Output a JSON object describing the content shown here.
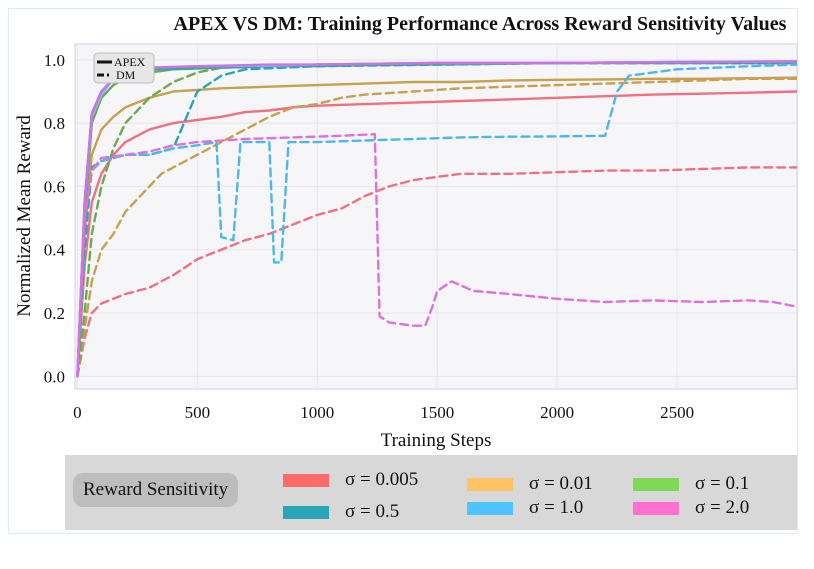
{
  "chart_data": {
    "type": "line",
    "title": "APEX VS DM: Training Performance Across Reward Sensitivity Values",
    "xlabel": "Training Steps",
    "ylabel": "Normalized Mean Reward",
    "xlim": [
      -10,
      3000
    ],
    "ylim": [
      -0.04,
      1.05
    ],
    "xticks": [
      0,
      500,
      1000,
      1500,
      2000,
      2500
    ],
    "yticks": [
      0.0,
      0.2,
      0.4,
      0.6,
      0.8,
      1.0
    ],
    "grid": true,
    "style_legend": [
      {
        "label": "APEX",
        "dash": "solid"
      },
      {
        "label": "DM",
        "dash": "dashed"
      }
    ],
    "legend": {
      "title": "Reward Sensitivity",
      "placement": "bottom",
      "entries": [
        {
          "label": "σ = 0.005",
          "color": "#ff6b6b"
        },
        {
          "label": "σ = 0.01",
          "color": "#ffc266"
        },
        {
          "label": "σ = 0.1",
          "color": "#7ed957"
        },
        {
          "label": "σ = 0.5",
          "color": "#2aa5b8"
        },
        {
          "label": "σ = 1.0",
          "color": "#4dc3ff"
        },
        {
          "label": "σ = 2.0",
          "color": "#ff70d0"
        }
      ]
    },
    "series": [
      {
        "name": "σ = 0.005 APEX",
        "style": "solid",
        "color": "#f07080",
        "points": [
          [
            0,
            0.0
          ],
          [
            30,
            0.35
          ],
          [
            60,
            0.55
          ],
          [
            100,
            0.64
          ],
          [
            150,
            0.7
          ],
          [
            200,
            0.74
          ],
          [
            300,
            0.78
          ],
          [
            400,
            0.8
          ],
          [
            500,
            0.81
          ],
          [
            600,
            0.82
          ],
          [
            700,
            0.835
          ],
          [
            800,
            0.84
          ],
          [
            900,
            0.85
          ],
          [
            1000,
            0.855
          ],
          [
            1200,
            0.86
          ],
          [
            1400,
            0.865
          ],
          [
            1600,
            0.87
          ],
          [
            1800,
            0.875
          ],
          [
            2000,
            0.88
          ],
          [
            2200,
            0.885
          ],
          [
            2400,
            0.89
          ],
          [
            2600,
            0.893
          ],
          [
            2800,
            0.896
          ],
          [
            3000,
            0.9
          ]
        ]
      },
      {
        "name": "σ = 0.005 DM",
        "style": "dashed",
        "color": "#f07080",
        "points": [
          [
            0,
            0.0
          ],
          [
            30,
            0.12
          ],
          [
            60,
            0.2
          ],
          [
            100,
            0.23
          ],
          [
            200,
            0.26
          ],
          [
            300,
            0.28
          ],
          [
            400,
            0.32
          ],
          [
            500,
            0.37
          ],
          [
            600,
            0.4
          ],
          [
            700,
            0.43
          ],
          [
            800,
            0.45
          ],
          [
            900,
            0.48
          ],
          [
            1000,
            0.51
          ],
          [
            1100,
            0.53
          ],
          [
            1200,
            0.57
          ],
          [
            1300,
            0.6
          ],
          [
            1400,
            0.62
          ],
          [
            1500,
            0.63
          ],
          [
            1600,
            0.64
          ],
          [
            1800,
            0.64
          ],
          [
            2000,
            0.645
          ],
          [
            2200,
            0.65
          ],
          [
            2400,
            0.65
          ],
          [
            2600,
            0.655
          ],
          [
            2800,
            0.66
          ],
          [
            3000,
            0.66
          ]
        ]
      },
      {
        "name": "σ = 0.01 APEX",
        "style": "solid",
        "color": "#c8a050",
        "points": [
          [
            0,
            0.0
          ],
          [
            30,
            0.45
          ],
          [
            60,
            0.7
          ],
          [
            100,
            0.78
          ],
          [
            150,
            0.82
          ],
          [
            200,
            0.85
          ],
          [
            300,
            0.88
          ],
          [
            400,
            0.9
          ],
          [
            500,
            0.905
          ],
          [
            600,
            0.91
          ],
          [
            800,
            0.915
          ],
          [
            1000,
            0.92
          ],
          [
            1200,
            0.925
          ],
          [
            1400,
            0.93
          ],
          [
            1600,
            0.93
          ],
          [
            1800,
            0.935
          ],
          [
            2000,
            0.937
          ],
          [
            2200,
            0.938
          ],
          [
            2400,
            0.94
          ],
          [
            2600,
            0.94
          ],
          [
            2800,
            0.942
          ],
          [
            3000,
            0.944
          ]
        ]
      },
      {
        "name": "σ = 0.01 DM",
        "style": "dashed",
        "color": "#c8a050",
        "points": [
          [
            0,
            0.0
          ],
          [
            30,
            0.15
          ],
          [
            60,
            0.3
          ],
          [
            100,
            0.4
          ],
          [
            150,
            0.45
          ],
          [
            200,
            0.52
          ],
          [
            250,
            0.56
          ],
          [
            300,
            0.6
          ],
          [
            350,
            0.64
          ],
          [
            400,
            0.66
          ],
          [
            500,
            0.7
          ],
          [
            600,
            0.74
          ],
          [
            700,
            0.78
          ],
          [
            800,
            0.82
          ],
          [
            900,
            0.85
          ],
          [
            1000,
            0.86
          ],
          [
            1100,
            0.88
          ],
          [
            1200,
            0.89
          ],
          [
            1400,
            0.9
          ],
          [
            1600,
            0.91
          ],
          [
            1800,
            0.915
          ],
          [
            2000,
            0.92
          ],
          [
            2200,
            0.925
          ],
          [
            2400,
            0.93
          ],
          [
            2600,
            0.935
          ],
          [
            2800,
            0.94
          ],
          [
            3000,
            0.94
          ]
        ]
      },
      {
        "name": "σ = 0.1 APEX",
        "style": "solid",
        "color": "#6aaa50",
        "points": [
          [
            0,
            0.0
          ],
          [
            30,
            0.5
          ],
          [
            60,
            0.8
          ],
          [
            100,
            0.88
          ],
          [
            150,
            0.92
          ],
          [
            200,
            0.94
          ],
          [
            300,
            0.96
          ],
          [
            400,
            0.97
          ],
          [
            600,
            0.975
          ],
          [
            800,
            0.98
          ],
          [
            1000,
            0.98
          ],
          [
            1200,
            0.983
          ],
          [
            1500,
            0.985
          ],
          [
            2000,
            0.99
          ],
          [
            2500,
            0.99
          ],
          [
            3000,
            0.99
          ]
        ]
      },
      {
        "name": "σ = 0.1 DM",
        "style": "dashed",
        "color": "#6aaa50",
        "points": [
          [
            0,
            0.0
          ],
          [
            30,
            0.2
          ],
          [
            60,
            0.45
          ],
          [
            100,
            0.6
          ],
          [
            150,
            0.72
          ],
          [
            200,
            0.8
          ],
          [
            300,
            0.88
          ],
          [
            400,
            0.93
          ],
          [
            500,
            0.96
          ],
          [
            600,
            0.975
          ],
          [
            800,
            0.98
          ],
          [
            1000,
            0.985
          ],
          [
            1500,
            0.985
          ],
          [
            2000,
            0.99
          ],
          [
            2500,
            0.99
          ],
          [
            3000,
            0.99
          ]
        ]
      },
      {
        "name": "σ = 0.5 APEX",
        "style": "solid",
        "color": "#2aa5b8",
        "points": [
          [
            0,
            0.0
          ],
          [
            30,
            0.55
          ],
          [
            60,
            0.83
          ],
          [
            100,
            0.9
          ],
          [
            150,
            0.94
          ],
          [
            200,
            0.96
          ],
          [
            300,
            0.97
          ],
          [
            500,
            0.975
          ],
          [
            800,
            0.98
          ],
          [
            1000,
            0.985
          ],
          [
            1500,
            0.99
          ],
          [
            2000,
            0.99
          ],
          [
            2500,
            0.993
          ],
          [
            3000,
            0.995
          ]
        ]
      },
      {
        "name": "σ = 0.5 DM",
        "style": "dashed",
        "color": "#2aa5b8",
        "points": [
          [
            0,
            0.0
          ],
          [
            30,
            0.4
          ],
          [
            60,
            0.66
          ],
          [
            100,
            0.68
          ],
          [
            200,
            0.7
          ],
          [
            300,
            0.7
          ],
          [
            400,
            0.72
          ],
          [
            500,
            0.9
          ],
          [
            600,
            0.95
          ],
          [
            700,
            0.97
          ],
          [
            1000,
            0.98
          ],
          [
            1500,
            0.985
          ],
          [
            2000,
            0.99
          ],
          [
            2500,
            0.99
          ],
          [
            3000,
            0.99
          ]
        ]
      },
      {
        "name": "σ = 1.0 APEX",
        "style": "solid",
        "color": "#8fb8f0",
        "points": [
          [
            0,
            0.0
          ],
          [
            30,
            0.55
          ],
          [
            60,
            0.82
          ],
          [
            100,
            0.89
          ],
          [
            150,
            0.94
          ],
          [
            200,
            0.96
          ],
          [
            300,
            0.975
          ],
          [
            500,
            0.98
          ],
          [
            800,
            0.982
          ],
          [
            1000,
            0.985
          ],
          [
            1500,
            0.99
          ],
          [
            2000,
            0.99
          ],
          [
            2500,
            0.993
          ],
          [
            3000,
            0.995
          ]
        ]
      },
      {
        "name": "σ = 1.0 DM",
        "style": "dashed",
        "color": "#4db8e8",
        "points": [
          [
            0,
            0.0
          ],
          [
            30,
            0.5
          ],
          [
            60,
            0.65
          ],
          [
            100,
            0.68
          ],
          [
            200,
            0.7
          ],
          [
            300,
            0.7
          ],
          [
            400,
            0.72
          ],
          [
            500,
            0.73
          ],
          [
            580,
            0.74
          ],
          [
            600,
            0.44
          ],
          [
            650,
            0.43
          ],
          [
            680,
            0.74
          ],
          [
            800,
            0.74
          ],
          [
            820,
            0.36
          ],
          [
            850,
            0.36
          ],
          [
            880,
            0.74
          ],
          [
            1000,
            0.74
          ],
          [
            1200,
            0.745
          ],
          [
            1400,
            0.75
          ],
          [
            1600,
            0.755
          ],
          [
            1800,
            0.757
          ],
          [
            2000,
            0.758
          ],
          [
            2200,
            0.76
          ],
          [
            2250,
            0.9
          ],
          [
            2300,
            0.95
          ],
          [
            2500,
            0.97
          ],
          [
            2800,
            0.98
          ],
          [
            3000,
            0.985
          ]
        ]
      },
      {
        "name": "σ = 2.0 APEX",
        "style": "solid",
        "color": "#d070e8",
        "points": [
          [
            0,
            0.0
          ],
          [
            30,
            0.55
          ],
          [
            60,
            0.83
          ],
          [
            100,
            0.9
          ],
          [
            150,
            0.94
          ],
          [
            200,
            0.96
          ],
          [
            300,
            0.975
          ],
          [
            500,
            0.98
          ],
          [
            800,
            0.985
          ],
          [
            1000,
            0.985
          ],
          [
            1500,
            0.99
          ],
          [
            2000,
            0.99
          ],
          [
            3000,
            0.995
          ]
        ]
      },
      {
        "name": "σ = 2.0 DM",
        "style": "dashed",
        "color": "#e070e0",
        "points": [
          [
            0,
            0.0
          ],
          [
            30,
            0.5
          ],
          [
            60,
            0.65
          ],
          [
            100,
            0.69
          ],
          [
            200,
            0.7
          ],
          [
            300,
            0.71
          ],
          [
            400,
            0.73
          ],
          [
            500,
            0.74
          ],
          [
            700,
            0.75
          ],
          [
            900,
            0.755
          ],
          [
            1100,
            0.76
          ],
          [
            1240,
            0.765
          ],
          [
            1260,
            0.19
          ],
          [
            1300,
            0.17
          ],
          [
            1400,
            0.16
          ],
          [
            1450,
            0.16
          ],
          [
            1480,
            0.22
          ],
          [
            1500,
            0.27
          ],
          [
            1560,
            0.3
          ],
          [
            1650,
            0.27
          ],
          [
            1800,
            0.26
          ],
          [
            2000,
            0.245
          ],
          [
            2200,
            0.235
          ],
          [
            2400,
            0.24
          ],
          [
            2600,
            0.235
          ],
          [
            2800,
            0.24
          ],
          [
            2900,
            0.235
          ],
          [
            3000,
            0.22
          ]
        ]
      }
    ]
  }
}
